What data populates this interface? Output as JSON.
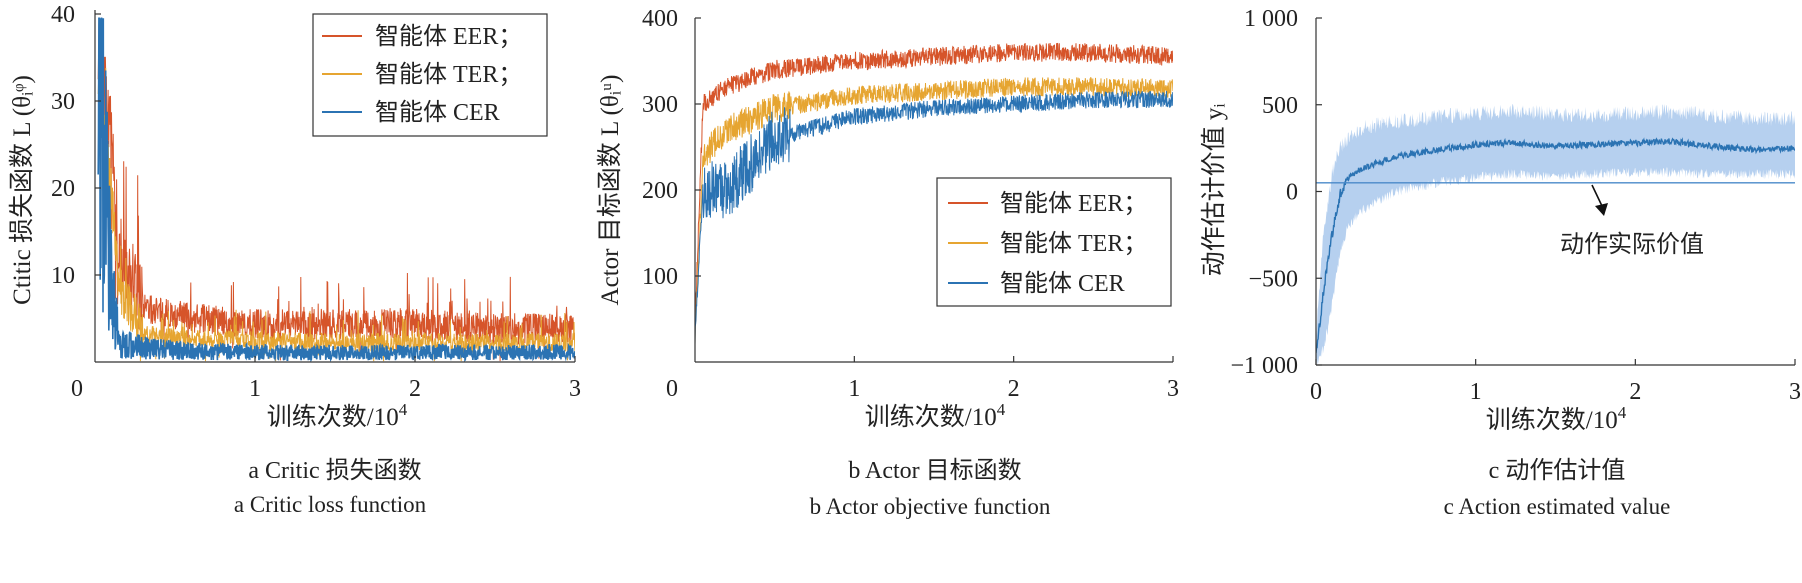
{
  "chart_data": [
    {
      "type": "line",
      "caption_cn": "a  Critic 损失函数",
      "caption_en": "a  Critic loss function",
      "xlabel": "训练次数/10",
      "xlabel_sup": "4",
      "ylabel": "Ctitic 损失函数 L (θᵢᵠ)",
      "xlim": [
        0,
        3
      ],
      "ylim": [
        0,
        40
      ],
      "x_ticks": [
        "0",
        "1",
        "2",
        "3"
      ],
      "y_ticks": [
        "10",
        "20",
        "30",
        "40"
      ],
      "legend_placement": "top-right",
      "series": [
        {
          "name": "智能体 EER；",
          "color": "#d6542a",
          "x": [
            0.02,
            0.1,
            0.15,
            0.3,
            0.5,
            1.0,
            1.5,
            2.0,
            2.5,
            3.0
          ],
          "y": [
            36,
            25,
            12,
            6,
            5,
            4,
            4,
            4,
            3.5,
            3.5
          ]
        },
        {
          "name": "智能体 TER；",
          "color": "#e6a531",
          "x": [
            0.02,
            0.1,
            0.15,
            0.3,
            0.5,
            1.0,
            1.5,
            2.0,
            2.5,
            3.0
          ],
          "y": [
            33,
            20,
            8,
            3,
            2.5,
            2.2,
            2,
            2,
            2,
            2
          ]
        },
        {
          "name": "智能体 CER",
          "color": "#2b73b3",
          "x": [
            0.02,
            0.1,
            0.15,
            0.3,
            0.5,
            1.0,
            1.5,
            2.0,
            2.5,
            3.0
          ],
          "y": [
            35,
            8,
            2,
            1.5,
            1.2,
            1,
            1,
            1,
            1,
            1
          ]
        }
      ]
    },
    {
      "type": "line",
      "caption_cn": "b  Actor 目标函数",
      "caption_en": "b  Actor objective function",
      "xlabel": "训练次数/10",
      "xlabel_sup": "4",
      "ylabel": "Actor 目标函数 L (θᵢᵘ)",
      "xlim": [
        0,
        3
      ],
      "ylim": [
        0,
        400
      ],
      "x_ticks": [
        "0",
        "1",
        "2",
        "3"
      ],
      "y_ticks": [
        "100",
        "200",
        "300",
        "400"
      ],
      "legend_placement": "center-right",
      "series": [
        {
          "name": "智能体 EER；",
          "color": "#d6542a",
          "x": [
            0,
            0.05,
            0.2,
            0.5,
            1.0,
            1.5,
            2.0,
            2.5,
            3.0
          ],
          "y": [
            40,
            300,
            320,
            340,
            350,
            355,
            360,
            360,
            355
          ]
        },
        {
          "name": "智能体 TER；",
          "color": "#e6a531",
          "x": [
            0,
            0.05,
            0.2,
            0.5,
            1.0,
            1.5,
            2.0,
            2.5,
            3.0
          ],
          "y": [
            30,
            240,
            270,
            295,
            310,
            315,
            320,
            320,
            318
          ]
        },
        {
          "name": "智能体 CER",
          "color": "#2b73b3",
          "x": [
            0,
            0.05,
            0.2,
            0.5,
            1.0,
            1.5,
            2.0,
            2.5,
            3.0
          ],
          "y": [
            30,
            200,
            200,
            260,
            285,
            295,
            300,
            305,
            305
          ]
        }
      ]
    },
    {
      "type": "line",
      "caption_cn": "c  动作估计值",
      "caption_en": "c  Action estimated value",
      "xlabel": "训练次数/10",
      "xlabel_sup": "4",
      "ylabel": "动作估计价值 yᵢ",
      "xlim": [
        0,
        3
      ],
      "ylim": [
        -1000,
        1000
      ],
      "x_ticks": [
        "0",
        "1",
        "2",
        "3"
      ],
      "y_ticks": [
        "−1 000",
        "−500",
        "0",
        "500",
        "1 000"
      ],
      "annotation": "动作实际价值",
      "actual_value": 50,
      "series": [
        {
          "name": "",
          "color": "#2b73b3",
          "x": [
            0,
            0.05,
            0.1,
            0.15,
            0.2,
            0.3,
            0.5,
            0.75,
            1.0,
            1.2,
            1.5,
            1.75,
            2.0,
            2.2,
            2.5,
            2.75,
            3.0
          ],
          "y": [
            -950,
            -550,
            -250,
            -20,
            80,
            140,
            200,
            240,
            270,
            280,
            260,
            270,
            280,
            290,
            260,
            240,
            250
          ],
          "band_low": [
            -1000,
            -900,
            -650,
            -350,
            -200,
            -100,
            0,
            50,
            80,
            100,
            90,
            100,
            110,
            110,
            100,
            100,
            100
          ],
          "band_high": [
            -850,
            -200,
            100,
            250,
            300,
            370,
            400,
            430,
            450,
            460,
            450,
            440,
            450,
            460,
            440,
            420,
            420
          ]
        }
      ]
    }
  ]
}
